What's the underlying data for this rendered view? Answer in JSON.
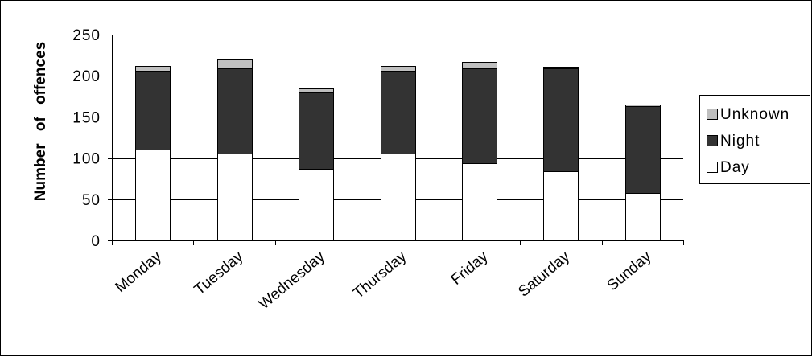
{
  "chart_data": {
    "type": "bar",
    "stacked": true,
    "title": "",
    "xlabel": "",
    "ylabel": "Number of offences",
    "ylim": [
      0,
      250
    ],
    "yticks": [
      0,
      50,
      100,
      150,
      200,
      250
    ],
    "grid": true,
    "legend_position": "right",
    "categories": [
      "Monday",
      "Tuesday",
      "Wednesday",
      "Thursday",
      "Friday",
      "Saturday",
      "Sunday"
    ],
    "series": [
      {
        "name": "Day",
        "color": "#ffffff",
        "values": [
          110,
          105,
          87,
          105,
          94,
          84,
          58
        ]
      },
      {
        "name": "Night",
        "color": "#333333",
        "values": [
          96,
          104,
          93,
          101,
          115,
          125,
          105
        ]
      },
      {
        "name": "Unknown",
        "color": "#bfbfbf",
        "values": [
          6,
          11,
          5,
          6,
          8,
          2,
          2
        ]
      }
    ],
    "legend_order": [
      "Unknown",
      "Night",
      "Day"
    ]
  }
}
